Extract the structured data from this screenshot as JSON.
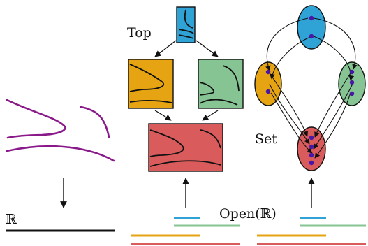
{
  "labels": {
    "top": "Top",
    "set": "Set",
    "open_r": "Open(ℝ)",
    "reals": "ℝ"
  },
  "colors": {
    "blue": "#2fa3d6",
    "orange": "#e6a412",
    "green": "#86c494",
    "red": "#d95b5b",
    "purple": "#8a1a8a",
    "point": "#4a16a8",
    "ink": "#111111"
  }
}
